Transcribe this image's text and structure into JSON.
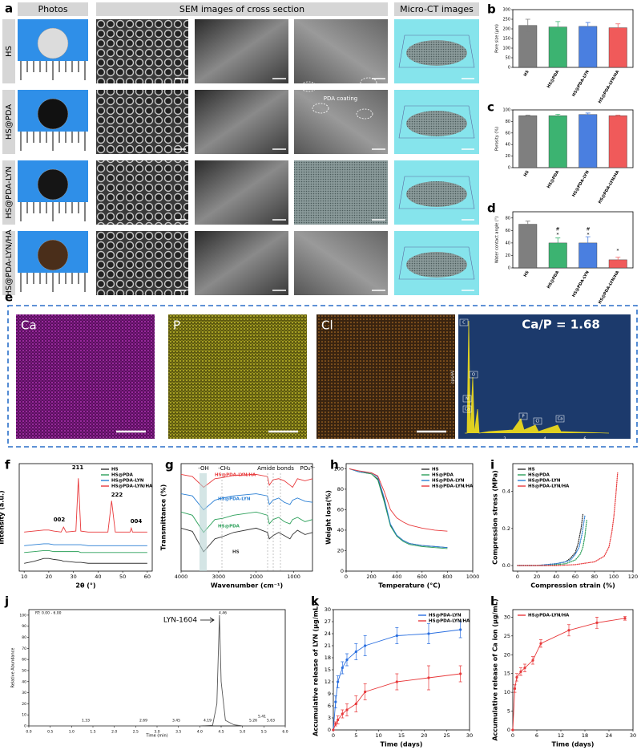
{
  "figure": {
    "a": {
      "panel": "a",
      "headers": [
        "Photos",
        "SEM images of cross section",
        "Micro-CT images"
      ],
      "rows": [
        "HS",
        "HS@PDA",
        "HS@PDA-LYN",
        "HS@PDA-LYN/HA"
      ],
      "note": "PDA coating"
    },
    "e": {
      "panel": "e",
      "maps": [
        "Ca",
        "P",
        "Cl"
      ],
      "ratio": "Ca/P = 1.68",
      "peaks": [
        "C",
        "O",
        "N",
        "Ca",
        "P",
        "Cl",
        "Ca"
      ],
      "spectrum_ylabel": "cps/eV",
      "spectrum_ticks": [
        "2",
        "4",
        "6"
      ]
    }
  },
  "chart_data": [
    {
      "type": "bar",
      "panel": "b",
      "ylabel": "Pore size (μm)",
      "categories": [
        "HS",
        "HS@PDA",
        "HS@PDA-LYN",
        "HS@PDA-LYN/HA"
      ],
      "values": [
        218,
        210,
        213,
        206
      ],
      "errors": [
        32,
        28,
        20,
        20
      ],
      "colors": [
        "#7f7f7f",
        "#3cb371",
        "#4a7fe0",
        "#f05a5a"
      ],
      "ylim": [
        0,
        300
      ],
      "yticks": [
        0,
        50,
        100,
        150,
        200,
        250,
        300
      ]
    },
    {
      "type": "bar",
      "panel": "c",
      "ylabel": "Porosity (%)",
      "categories": [
        "HS",
        "HS@PDA",
        "HS@PDA-LYN",
        "HS@PDA-LYN/HA"
      ],
      "values": [
        90,
        90,
        92,
        90
      ],
      "errors": [
        1,
        2.5,
        2.5,
        1
      ],
      "colors": [
        "#7f7f7f",
        "#3cb371",
        "#4a7fe0",
        "#f05a5a"
      ],
      "ylim": [
        0,
        100
      ],
      "yticks": [
        0,
        20,
        40,
        60,
        80,
        100
      ]
    },
    {
      "type": "bar",
      "panel": "d",
      "ylabel": "Water contact angle (°)",
      "categories": [
        "HS",
        "HS@PDA",
        "HS@PDA-LYN",
        "HS@PDA-LYN/HA"
      ],
      "values": [
        70,
        40,
        40,
        13
      ],
      "errors": [
        5,
        8,
        10,
        4
      ],
      "colors": [
        "#7f7f7f",
        "#3cb371",
        "#4a7fe0",
        "#f05a5a"
      ],
      "ylim": [
        0,
        90
      ],
      "yticks": [
        0,
        20,
        40,
        60,
        80
      ],
      "annotations": [
        "*",
        "#",
        "*",
        "#",
        "*"
      ]
    },
    {
      "type": "line",
      "panel": "f",
      "xlabel": "2θ (°)",
      "ylabel": "Intensity (a.u.)",
      "legend": "upper right",
      "x": [
        10,
        14,
        18,
        20,
        22,
        25,
        26,
        27,
        31,
        32,
        33,
        36,
        40,
        44,
        45.5,
        47,
        50,
        53,
        53.5,
        54,
        57,
        60
      ],
      "series": [
        {
          "name": "HS",
          "color": "#333333",
          "values": [
            8,
            10,
            13,
            13,
            12,
            11,
            10,
            10,
            9,
            9,
            9,
            8,
            8,
            8,
            8,
            8,
            8,
            8,
            8,
            8,
            8,
            8
          ]
        },
        {
          "name": "HS@PDA",
          "color": "#2ca05a",
          "values": [
            19,
            20,
            21,
            21,
            20,
            20,
            20,
            20,
            20,
            20,
            19,
            19,
            19,
            19,
            19,
            19,
            19,
            19,
            19,
            19,
            19,
            19
          ]
        },
        {
          "name": "HS@PDA-LYN",
          "color": "#2a7fd4",
          "values": [
            26,
            27,
            28,
            28,
            27,
            27,
            27,
            27,
            27,
            27,
            27,
            26,
            26,
            26,
            26,
            26,
            26,
            26,
            26,
            26,
            26,
            26
          ]
        },
        {
          "name": "HS@PDA-LYN/HA",
          "color": "#e8393b",
          "values": [
            40,
            41,
            42,
            42,
            41,
            40,
            45,
            40,
            41,
            95,
            41,
            40,
            40,
            40,
            72,
            40,
            40,
            40,
            44,
            40,
            40,
            40
          ]
        }
      ],
      "xlim": [
        8,
        62
      ],
      "xticks": [
        10,
        20,
        30,
        40,
        50,
        60
      ],
      "ylim": [
        0,
        110
      ],
      "annotations": [
        "002",
        "211",
        "222",
        "004"
      ]
    },
    {
      "type": "line",
      "panel": "g",
      "xlabel": "Wavenumber (cm⁻¹)",
      "ylabel": "Transmittance (%)",
      "legend": "inline",
      "x": [
        4000,
        3700,
        3400,
        3100,
        2900,
        2600,
        2000,
        1700,
        1650,
        1550,
        1400,
        1250,
        1100,
        1030,
        900,
        700,
        500
      ],
      "series": [
        {
          "name": "HS@PDA-LYN/HA",
          "color": "#e8393b",
          "values": [
            90,
            88,
            78,
            86,
            87,
            89,
            90,
            88,
            80,
            85,
            86,
            84,
            80,
            78,
            86,
            84,
            86
          ]
        },
        {
          "name": "HS@PDA-LYN",
          "color": "#2a7fd4",
          "values": [
            72,
            70,
            57,
            66,
            68,
            70,
            72,
            70,
            62,
            66,
            68,
            64,
            62,
            66,
            68,
            65,
            64
          ]
        },
        {
          "name": "HS@PDA",
          "color": "#2ca05a",
          "values": [
            55,
            52,
            36,
            48,
            49,
            52,
            55,
            52,
            44,
            48,
            50,
            46,
            44,
            48,
            50,
            46,
            48
          ]
        },
        {
          "name": "HS",
          "color": "#333333",
          "values": [
            40,
            37,
            18,
            30,
            32,
            36,
            40,
            36,
            30,
            33,
            36,
            33,
            30,
            34,
            38,
            34,
            36
          ]
        }
      ],
      "xlim": [
        4000,
        500
      ],
      "xticks": [
        4000,
        3000,
        2000,
        1000
      ],
      "ylim": [
        0,
        100
      ],
      "annotations": [
        "-OH",
        "-CH₂",
        "Amide bonds",
        "PO₄³⁻"
      ]
    },
    {
      "type": "line",
      "panel": "h",
      "xlabel": "Temperature (°C)",
      "ylabel": "Weight loss(%)",
      "legend": "upper right",
      "x": [
        25,
        100,
        200,
        250,
        300,
        350,
        400,
        450,
        500,
        600,
        700,
        800
      ],
      "series": [
        {
          "name": "HS",
          "color": "#333333",
          "values": [
            100,
            97,
            95,
            90,
            70,
            45,
            35,
            30,
            27,
            25,
            24,
            23
          ]
        },
        {
          "name": "HS@PDA",
          "color": "#2ca05a",
          "values": [
            100,
            97,
            95,
            89,
            68,
            44,
            34,
            29,
            26,
            24,
            23,
            22
          ]
        },
        {
          "name": "HS@PDA-LYN",
          "color": "#2a7fd4",
          "values": [
            100,
            97,
            96,
            92,
            72,
            46,
            35,
            30,
            27,
            25,
            24,
            23
          ]
        },
        {
          "name": "HS@PDA-LYN/HA",
          "color": "#e8393b",
          "values": [
            100,
            98,
            96,
            93,
            78,
            60,
            52,
            48,
            45,
            42,
            40,
            39
          ]
        }
      ],
      "xlim": [
        0,
        1000
      ],
      "xticks": [
        0,
        200,
        400,
        600,
        800,
        1000
      ],
      "ylim": [
        0,
        105
      ],
      "yticks": [
        0,
        20,
        40,
        60,
        80,
        100
      ]
    },
    {
      "type": "line",
      "panel": "i",
      "xlabel": "Compression strain (%)",
      "ylabel": "Compression stress (MPa)",
      "legend": "upper left",
      "linestyle": "dotted",
      "series": [
        {
          "name": "HS",
          "color": "#333333",
          "x": [
            0,
            10,
            20,
            30,
            40,
            50,
            55,
            60,
            63,
            66,
            68
          ],
          "values": [
            0,
            0,
            0,
            0.005,
            0.01,
            0.02,
            0.04,
            0.07,
            0.12,
            0.2,
            0.28
          ]
        },
        {
          "name": "HS@PDA",
          "color": "#2ca05a",
          "x": [
            0,
            10,
            20,
            30,
            40,
            50,
            60,
            65,
            68,
            70,
            72
          ],
          "values": [
            0,
            0,
            0,
            0,
            0.005,
            0.01,
            0.03,
            0.06,
            0.1,
            0.16,
            0.25
          ]
        },
        {
          "name": "HS@PDA-LYN",
          "color": "#2a7fd4",
          "x": [
            0,
            10,
            20,
            30,
            40,
            50,
            55,
            60,
            64,
            67,
            70
          ],
          "values": [
            0,
            0,
            0,
            0.005,
            0.01,
            0.02,
            0.03,
            0.06,
            0.1,
            0.17,
            0.27
          ]
        },
        {
          "name": "HS@PDA-LYN/HA",
          "color": "#e8393b",
          "x": [
            0,
            20,
            40,
            60,
            80,
            90,
            95,
            98,
            100,
            102,
            104
          ],
          "values": [
            0,
            0,
            0,
            0.005,
            0.02,
            0.05,
            0.1,
            0.18,
            0.26,
            0.37,
            0.5
          ]
        }
      ],
      "xlim": [
        -5,
        120
      ],
      "xticks": [
        0,
        20,
        40,
        60,
        80,
        100,
        120
      ],
      "ylim": [
        -0.03,
        0.55
      ],
      "yticks": [
        {
          "value": 0,
          "label": "0.0"
        },
        {
          "value": 0.2,
          "label": "0.2"
        },
        {
          "value": 0.4,
          "label": "0.4"
        }
      ]
    },
    {
      "type": "line",
      "panel": "j",
      "xlabel": "Time (min)",
      "ylabel": "Relative Abundance",
      "x": [
        0,
        1,
        2,
        3,
        4,
        4.3,
        4.4,
        4.46,
        4.5,
        4.6,
        4.8,
        5,
        6
      ],
      "series": [
        {
          "name": "LYN-1604",
          "color": "#555555",
          "values": [
            0,
            0,
            0,
            0,
            0,
            0.5,
            20,
            100,
            40,
            5,
            1,
            0,
            0
          ]
        }
      ],
      "xlim": [
        0,
        6
      ],
      "xticks": [
        {
          "value": 0,
          "label": "0.0"
        },
        0.5,
        {
          "value": 1,
          "label": "1.0"
        },
        1.5,
        {
          "value": 2,
          "label": "2.0"
        },
        2.5,
        {
          "value": 3,
          "label": "3.0"
        },
        3.5,
        {
          "value": 4,
          "label": "4.0"
        },
        4.5,
        {
          "value": 5,
          "label": "5.0"
        },
        5.5,
        {
          "value": 6,
          "label": "6.0"
        }
      ],
      "ylim": [
        0,
        105
      ],
      "yticks": [
        0,
        10,
        20,
        30,
        40,
        50,
        60,
        70,
        80,
        90,
        100
      ],
      "annotations": [
        "RT: 0.00 - 6.00",
        "4.46",
        "1.33",
        "2.69",
        "3.45",
        "4.19",
        "5.26",
        "5.41",
        "5.63"
      ]
    },
    {
      "type": "line",
      "panel": "k",
      "xlabel": "Time (days)",
      "ylabel": "Accumulative release of LYN (μg/mL)",
      "legend": "upper right",
      "markers": true,
      "x": [
        0,
        0.5,
        1,
        2,
        3,
        5,
        7,
        14,
        21,
        28
      ],
      "series": [
        {
          "name": "HS@PDA-LYN",
          "color": "#2a6fe0",
          "values": [
            0,
            7,
            12,
            15.5,
            17.5,
            19.5,
            21,
            23.5,
            24,
            25
          ],
          "errors": [
            0,
            1.5,
            1.5,
            1.5,
            1.5,
            2,
            2.5,
            2,
            2.5,
            2
          ]
        },
        {
          "name": "HS@PDA-LYN/HA",
          "color": "#e8393b",
          "values": [
            0,
            1.5,
            2.5,
            4,
            5,
            6.5,
            9.5,
            12,
            13,
            14
          ],
          "errors": [
            0,
            0.5,
            1,
            1,
            1.5,
            2,
            2,
            2,
            3,
            2
          ]
        }
      ],
      "xlim": [
        0,
        30
      ],
      "xticks": [
        0,
        5,
        10,
        15,
        20,
        25,
        30
      ],
      "ylim": [
        0,
        30
      ],
      "yticks": [
        0,
        3,
        6,
        9,
        12,
        15,
        18,
        21,
        24,
        27,
        30
      ]
    },
    {
      "type": "line",
      "panel": "l",
      "xlabel": "Time (days)",
      "ylabel": "Accumulative release of Ca ion (μg/mL)",
      "legend": "upper left",
      "markers": true,
      "x": [
        0,
        0.5,
        1,
        2,
        3,
        5,
        7,
        14,
        21,
        28
      ],
      "series": [
        {
          "name": "HS@PDA-LYN/HA",
          "color": "#e8393b",
          "values": [
            0,
            11,
            14,
            15.5,
            16.5,
            18.5,
            23,
            26.5,
            28.5,
            29.7
          ],
          "errors": [
            0,
            1,
            1,
            1,
            1,
            1,
            1,
            1.5,
            1.5,
            0.5
          ]
        }
      ],
      "xlim": [
        0,
        30
      ],
      "xticks": [
        0,
        6,
        12,
        18,
        24,
        30
      ],
      "ylim": [
        0,
        32
      ],
      "yticks": [
        0,
        5,
        10,
        15,
        20,
        25,
        30
      ]
    }
  ]
}
